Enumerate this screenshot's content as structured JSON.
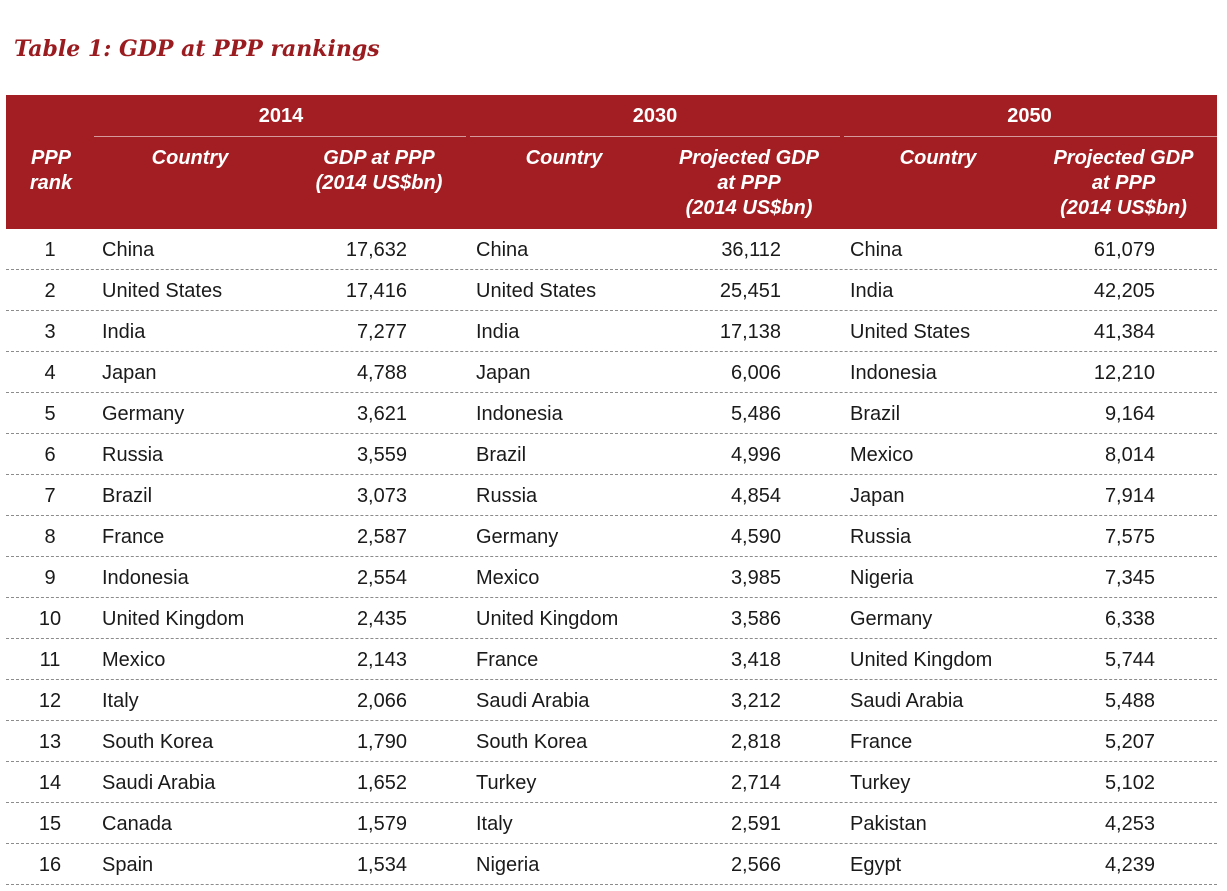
{
  "title": "Table 1: GDP at PPP rankings",
  "colors": {
    "accent": "#a31e22",
    "title": "#9b1c20"
  },
  "header": {
    "rank_label_line1": "PPP",
    "rank_label_line2": "rank",
    "years": [
      "2014",
      "2030",
      "2050"
    ],
    "country_label": "Country",
    "gdp_2014_line1": "GDP at PPP",
    "gdp_2014_line2": "(2014 US$bn)",
    "proj_line1": "Projected GDP",
    "proj_line2": "at PPP",
    "proj_line3": "(2014 US$bn)"
  },
  "rows": [
    {
      "rank": "1",
      "c2014": "China",
      "v2014": "17,632",
      "c2030": "China",
      "v2030": "36,112",
      "c2050": "China",
      "v2050": "61,079"
    },
    {
      "rank": "2",
      "c2014": "United States",
      "v2014": "17,416",
      "c2030": "United States",
      "v2030": "25,451",
      "c2050": "India",
      "v2050": "42,205"
    },
    {
      "rank": "3",
      "c2014": "India",
      "v2014": "7,277",
      "c2030": "India",
      "v2030": "17,138",
      "c2050": "United States",
      "v2050": "41,384"
    },
    {
      "rank": "4",
      "c2014": "Japan",
      "v2014": "4,788",
      "c2030": "Japan",
      "v2030": "6,006",
      "c2050": "Indonesia",
      "v2050": "12,210"
    },
    {
      "rank": "5",
      "c2014": "Germany",
      "v2014": "3,621",
      "c2030": "Indonesia",
      "v2030": "5,486",
      "c2050": "Brazil",
      "v2050": "9,164"
    },
    {
      "rank": "6",
      "c2014": "Russia",
      "v2014": "3,559",
      "c2030": "Brazil",
      "v2030": "4,996",
      "c2050": "Mexico",
      "v2050": "8,014"
    },
    {
      "rank": "7",
      "c2014": "Brazil",
      "v2014": "3,073",
      "c2030": "Russia",
      "v2030": "4,854",
      "c2050": "Japan",
      "v2050": "7,914"
    },
    {
      "rank": "8",
      "c2014": "France",
      "v2014": "2,587",
      "c2030": "Germany",
      "v2030": "4,590",
      "c2050": "Russia",
      "v2050": "7,575"
    },
    {
      "rank": "9",
      "c2014": "Indonesia",
      "v2014": "2,554",
      "c2030": "Mexico",
      "v2030": "3,985",
      "c2050": "Nigeria",
      "v2050": "7,345"
    },
    {
      "rank": "10",
      "c2014": "United Kingdom",
      "v2014": "2,435",
      "c2030": "United Kingdom",
      "v2030": "3,586",
      "c2050": "Germany",
      "v2050": "6,338"
    },
    {
      "rank": "11",
      "c2014": "Mexico",
      "v2014": "2,143",
      "c2030": "France",
      "v2030": "3,418",
      "c2050": "United Kingdom",
      "v2050": "5,744"
    },
    {
      "rank": "12",
      "c2014": "Italy",
      "v2014": "2,066",
      "c2030": "Saudi Arabia",
      "v2030": "3,212",
      "c2050": "Saudi Arabia",
      "v2050": "5,488"
    },
    {
      "rank": "13",
      "c2014": "South Korea",
      "v2014": "1,790",
      "c2030": "South Korea",
      "v2030": "2,818",
      "c2050": "France",
      "v2050": "5,207"
    },
    {
      "rank": "14",
      "c2014": "Saudi Arabia",
      "v2014": "1,652",
      "c2030": "Turkey",
      "v2030": "2,714",
      "c2050": "Turkey",
      "v2050": "5,102"
    },
    {
      "rank": "15",
      "c2014": "Canada",
      "v2014": "1,579",
      "c2030": "Italy",
      "v2030": "2,591",
      "c2050": "Pakistan",
      "v2050": "4,253"
    },
    {
      "rank": "16",
      "c2014": "Spain",
      "v2014": "1,534",
      "c2030": "Nigeria",
      "v2030": "2,566",
      "c2050": "Egypt",
      "v2050": "4,239"
    }
  ]
}
